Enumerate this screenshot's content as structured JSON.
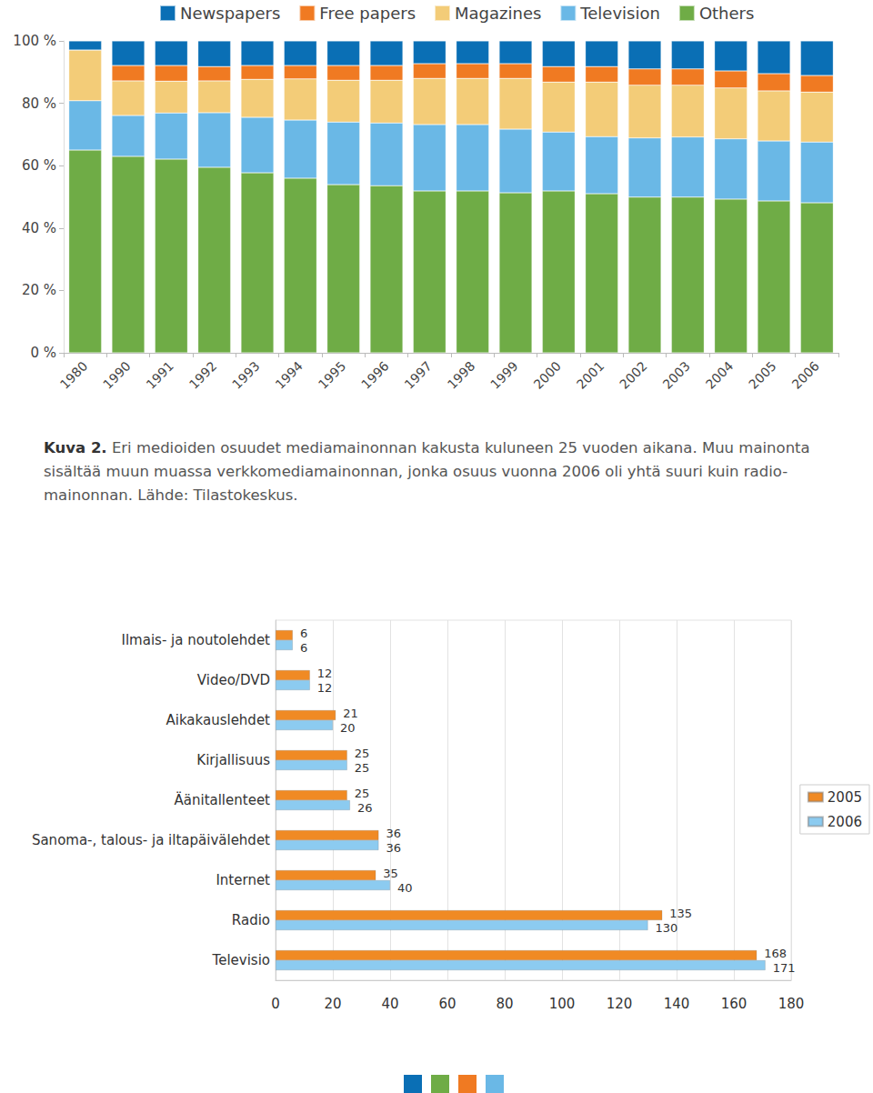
{
  "chart_data": [
    {
      "type": "bar",
      "stacked": true,
      "legend": "top",
      "grid": false,
      "categories": [
        "1980",
        "1990",
        "1991",
        "1992",
        "1993",
        "1994",
        "1995",
        "1996",
        "1997",
        "1998",
        "1999",
        "2000",
        "2001",
        "2002",
        "2003",
        "2004",
        "2005",
        "2006"
      ],
      "series": [
        {
          "name": "Newspapers",
          "color": "#0a6fb5",
          "values": [
            2.9,
            7.9,
            7.9,
            8.2,
            7.9,
            7.9,
            7.9,
            7.9,
            7.3,
            7.3,
            7.3,
            8.2,
            8.2,
            9.0,
            9.0,
            9.6,
            10.5,
            11.1
          ]
        },
        {
          "name": "Free papers",
          "color": "#f07a22",
          "values": [
            0,
            4.9,
            5.0,
            4.6,
            4.4,
            4.3,
            4.7,
            4.7,
            4.7,
            4.7,
            4.7,
            5.0,
            5.0,
            5.2,
            5.2,
            5.5,
            5.5,
            5.3
          ]
        },
        {
          "name": "Magazines",
          "color": "#f3cc78",
          "values": [
            16.3,
            11.1,
            10.2,
            10.2,
            12.2,
            13.2,
            13.4,
            13.7,
            14.8,
            14.8,
            16.3,
            16.0,
            17.5,
            16.9,
            16.6,
            16.3,
            16.1,
            16.0
          ]
        },
        {
          "name": "Television",
          "color": "#6ab8e6",
          "values": [
            15.8,
            13.1,
            14.8,
            17.5,
            17.8,
            18.6,
            20.1,
            20.1,
            21.3,
            21.3,
            20.4,
            18.9,
            18.3,
            19.0,
            19.3,
            19.3,
            19.2,
            19.5
          ]
        },
        {
          "name": "Others",
          "color": "#6fac46",
          "values": [
            65.0,
            63.0,
            62.1,
            59.5,
            57.7,
            56.0,
            53.9,
            53.6,
            51.9,
            51.9,
            51.3,
            51.9,
            51.0,
            49.9,
            49.9,
            49.3,
            48.7,
            48.1
          ]
        }
      ],
      "ylim": [
        0,
        100
      ],
      "yticks": [
        {
          "value": 0,
          "label": "0 %"
        },
        {
          "value": 20,
          "label": "20 %"
        },
        {
          "value": 40,
          "label": "40 %"
        },
        {
          "value": 60,
          "label": "60 %"
        },
        {
          "value": 80,
          "label": "80 %"
        },
        {
          "value": 100,
          "label": "100 %"
        }
      ]
    },
    {
      "type": "bar",
      "orientation": "horizontal",
      "legend": "right",
      "grid": true,
      "data_labels": true,
      "categories": [
        "Ilmais- ja noutolehdet",
        "Video/DVD",
        "Aikakauslehdet",
        "Kirjallisuus",
        "Äänitallenteet",
        "Sanoma-, talous- ja iltapäivälehdet",
        "Internet",
        "Radio",
        "Televisio"
      ],
      "series": [
        {
          "name": "2005",
          "color": "#f08a24",
          "values": [
            6,
            12,
            21,
            25,
            25,
            36,
            35,
            135,
            168
          ]
        },
        {
          "name": "2006",
          "color": "#8ccbf0",
          "values": [
            6,
            12,
            20,
            25,
            26,
            36,
            40,
            130,
            171
          ]
        }
      ],
      "xlim": [
        0,
        180
      ],
      "xticks": [
        0,
        20,
        40,
        60,
        80,
        100,
        120,
        140,
        160,
        180
      ]
    }
  ],
  "caption": {
    "label": "Kuva 2.",
    "lines": [
      "Eri medioiden osuudet mediamainonnan kakusta kuluneen 25 vuoden aikana. Muu mainonta",
      "sisältää muun muassa verkkomediamainonnan, jonka osuus vuonna 2006 oli yhtä suuri kuin radio-",
      "mainonnan. Lähde: Tilastokeskus."
    ]
  }
}
